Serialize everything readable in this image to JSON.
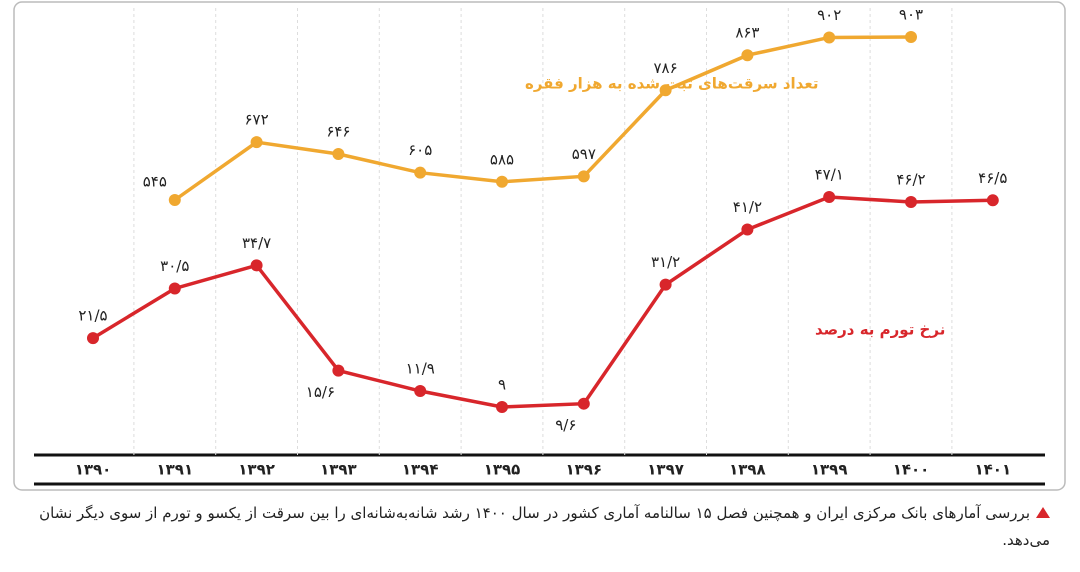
{
  "chart_data": {
    "type": "line",
    "categories": [
      "۱۳۹۰",
      "۱۳۹۱",
      "۱۳۹۲",
      "۱۳۹۳",
      "۱۳۹۴",
      "۱۳۹۵",
      "۱۳۹۶",
      "۱۳۹۷",
      "۱۳۹۸",
      "۱۳۹۹",
      "۱۴۰۰",
      "۱۴۰۱"
    ],
    "series": [
      {
        "name": "تعداد سرقت‌های ثبت شده به هزار فقره",
        "color": "#f0a830",
        "values": [
          null,
          545,
          672,
          646,
          605,
          585,
          597,
          786,
          863,
          902,
          903,
          null
        ],
        "value_labels": [
          null,
          "۵۴۵",
          "۶۷۲",
          "۶۴۶",
          "۶۰۵",
          "۵۸۵",
          "۵۹۷",
          "۷۸۶",
          "۸۶۳",
          "۹۰۲",
          "۹۰۳",
          null
        ]
      },
      {
        "name": "نرخ تورم به درصد",
        "color": "#d8262b",
        "values": [
          21.5,
          30.5,
          34.7,
          15.6,
          11.9,
          9,
          9.6,
          31.2,
          41.2,
          47.1,
          46.2,
          46.5
        ],
        "value_labels": [
          "۲۱/۵",
          "۳۰/۵",
          "۳۴/۷",
          "۱۵/۶",
          "۱۱/۹",
          "۹",
          "۹/۶",
          "۳۱/۲",
          "۴۱/۲",
          "۴۷/۱",
          "۴۶/۲",
          "۴۶/۵"
        ]
      }
    ]
  },
  "caption": "بررسی آمارهای بانک مرکزی ایران و همچنین فصل ۱۵ سالنامه آماری کشور در سال ۱۴۰۰ رشد شانه‌به‌شانه‌ای را بین سرقت از یکسو و تورم از سوی دیگر نشان می‌دهد."
}
